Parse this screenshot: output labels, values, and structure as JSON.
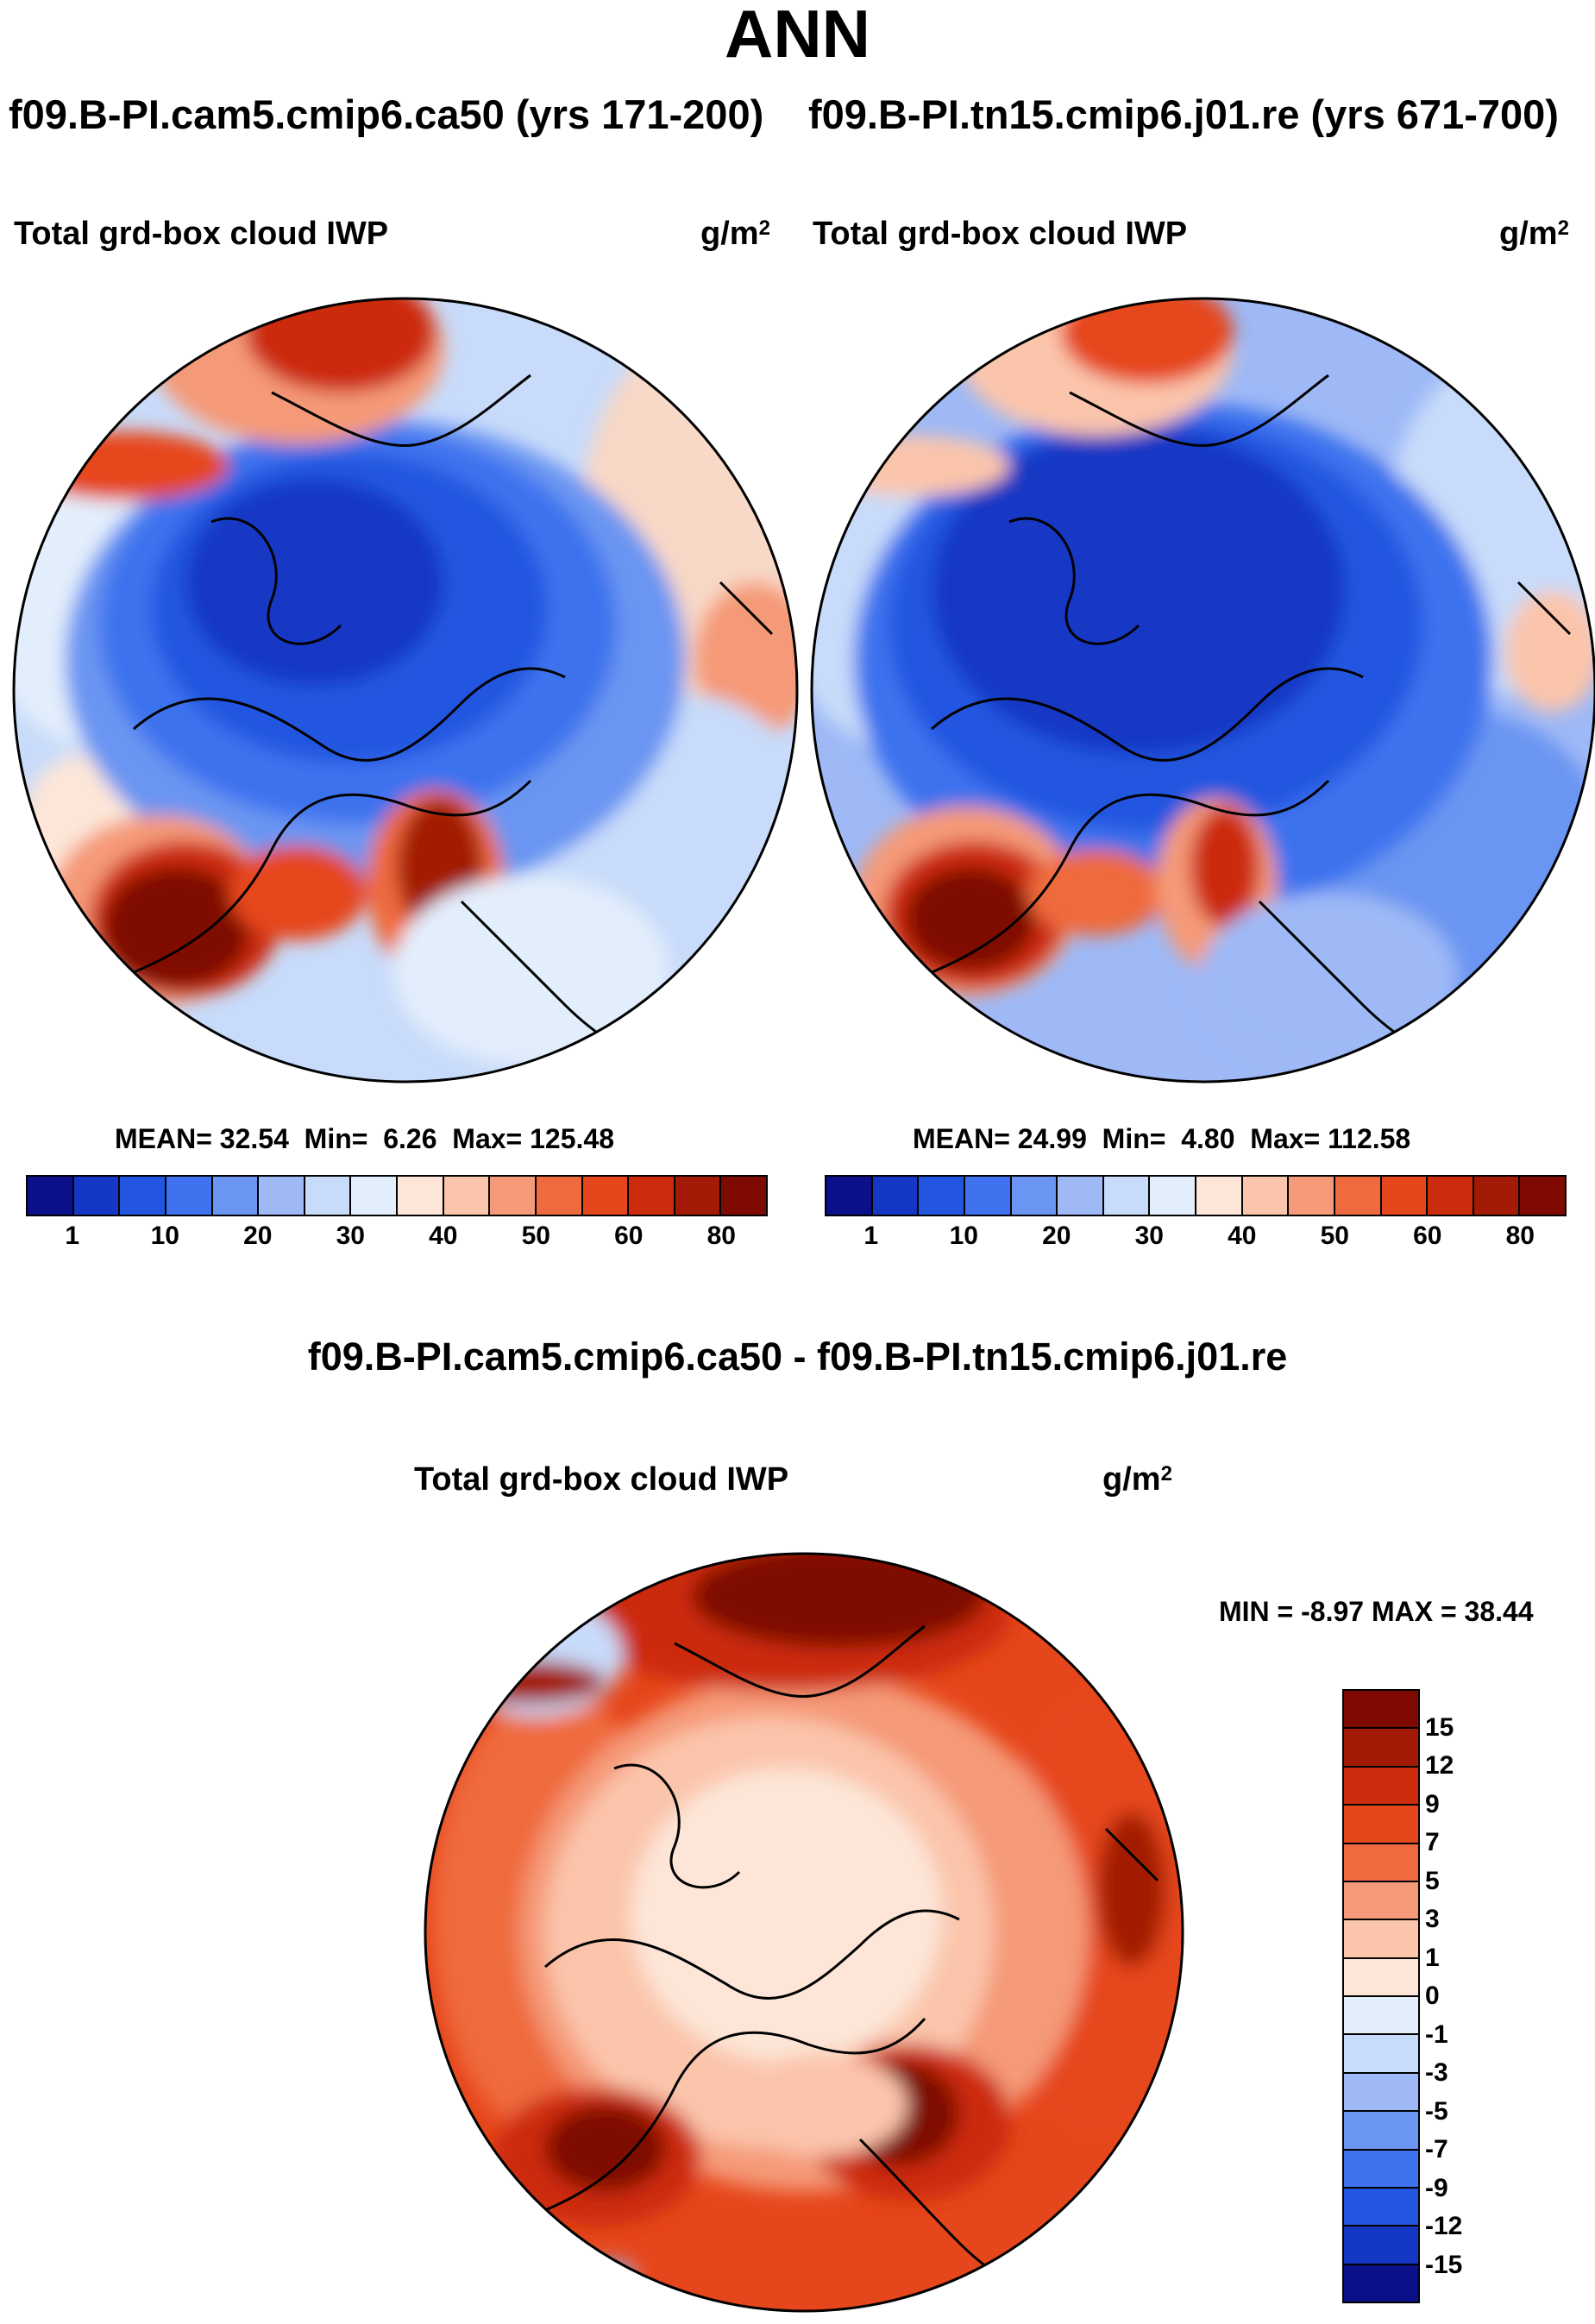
{
  "figure": {
    "title": "ANN",
    "case_titles": {
      "left": "f09.B-PI.cam5.cmip6.ca50 (yrs 171-200)",
      "right": "f09.B-PI.tn15.cmip6.j01.re (yrs 671-700)"
    },
    "diff_title": "f09.B-PI.cam5.cmip6.ca50 - f09.B-PI.tn15.cmip6.j01.re"
  },
  "chart_data": [
    {
      "type": "heatmap",
      "projection": "north-polar-stereographic",
      "title": "f09.B-PI.cam5.cmip6.ca50 (yrs 171-200)",
      "variable": "Total grd-box cloud IWP",
      "units_base": "g/m",
      "units_exp": "2",
      "stats": {
        "mean_label": "MEAN=",
        "mean": "32.54",
        "min_label": "Min=",
        "min": "6.26",
        "max_label": "Max=",
        "max": "125.48"
      },
      "colorbar": {
        "orientation": "horizontal",
        "tick_labels": [
          "1",
          "10",
          "20",
          "30",
          "40",
          "50",
          "60",
          "80"
        ],
        "colors": [
          "#0b0f8a",
          "#1437c4",
          "#2356e0",
          "#3e72ee",
          "#6b95f2",
          "#9eb9f6",
          "#c8dbfa",
          "#e3eefc",
          "#fde6d8",
          "#fbc5ab",
          "#f59a78",
          "#ef6a3e",
          "#e6461b",
          "#cc2c0c",
          "#a31b06",
          "#7e0a02"
        ]
      }
    },
    {
      "type": "heatmap",
      "projection": "north-polar-stereographic",
      "title": "f09.B-PI.tn15.cmip6.j01.re (yrs 671-700)",
      "variable": "Total grd-box cloud IWP",
      "units_base": "g/m",
      "units_exp": "2",
      "stats": {
        "mean_label": "MEAN=",
        "mean": "24.99",
        "min_label": "Min=",
        "min": "4.80",
        "max_label": "Max=",
        "max": "112.58"
      },
      "colorbar": {
        "orientation": "horizontal",
        "tick_labels": [
          "1",
          "10",
          "20",
          "30",
          "40",
          "50",
          "60",
          "80"
        ],
        "colors": [
          "#0b0f8a",
          "#1437c4",
          "#2356e0",
          "#3e72ee",
          "#6b95f2",
          "#9eb9f6",
          "#c8dbfa",
          "#e3eefc",
          "#fde6d8",
          "#fbc5ab",
          "#f59a78",
          "#ef6a3e",
          "#e6461b",
          "#cc2c0c",
          "#a31b06",
          "#7e0a02"
        ]
      }
    },
    {
      "type": "heatmap",
      "projection": "north-polar-stereographic",
      "title": "f09.B-PI.cam5.cmip6.ca50 - f09.B-PI.tn15.cmip6.j01.re",
      "variable": "Total grd-box cloud IWP",
      "units_base": "g/m",
      "units_exp": "2",
      "stats": {
        "min_label": "MIN =",
        "min": "-8.97",
        "max_label": "MAX =",
        "max": "38.44"
      },
      "colorbar": {
        "orientation": "vertical",
        "tick_labels": [
          "15",
          "12",
          "9",
          "7",
          "5",
          "3",
          "1",
          "0",
          "-1",
          "-3",
          "-5",
          "-7",
          "-9",
          "-12",
          "-15"
        ],
        "colors": [
          "#7e0a02",
          "#a31b06",
          "#cc2c0c",
          "#e6461b",
          "#ef6a3e",
          "#f59a78",
          "#fbc5ab",
          "#fde6d8",
          "#e3eefc",
          "#c8dbfa",
          "#9eb9f6",
          "#6b95f2",
          "#3e72ee",
          "#2356e0",
          "#1437c4",
          "#0b0f8a"
        ]
      }
    }
  ]
}
